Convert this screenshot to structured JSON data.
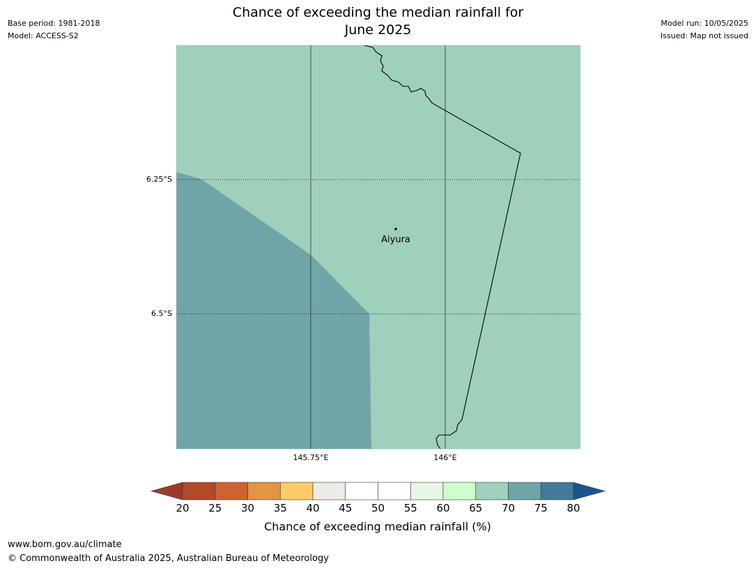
{
  "header": {
    "title_line1": "Chance of exceeding the median rainfall for",
    "title_line2": "June 2025",
    "base_period": "Base period: 1981-2018",
    "model": "Model: ACCESS-S2",
    "model_run": "Model run: 10/05/2025",
    "issued": "Issued: Map not issued"
  },
  "map": {
    "lat_labels": [
      "6.25°S",
      "6.5°S"
    ],
    "lon_labels": [
      "145.75°E",
      "146°E"
    ],
    "place": {
      "name": "Aiyura"
    },
    "colors": {
      "zone_65_70": "#9ed0bb",
      "zone_70_75": "#70a5a8",
      "coastline": "#000000",
      "gridline": "#333333"
    }
  },
  "colorbar": {
    "label": "Chance of exceeding median rainfall (%)",
    "ticks": [
      "20",
      "25",
      "30",
      "35",
      "40",
      "45",
      "50",
      "55",
      "60",
      "65",
      "70",
      "75",
      "80"
    ],
    "under_color": "#9e3a26",
    "over_color": "#1a5590",
    "segment_colors": [
      "#b24a27",
      "#cf6231",
      "#e39445",
      "#fecb67",
      "#eeeae5",
      "#ffffff",
      "#ffffff",
      "#e7f7e7",
      "#ccffcc",
      "#9ed0bb",
      "#70a5a8",
      "#417b99"
    ]
  },
  "footer": {
    "url": "www.bom.gov.au/climate",
    "copyright": "© Commonwealth of Australia 2025, Australian Bureau of Meteorology"
  }
}
